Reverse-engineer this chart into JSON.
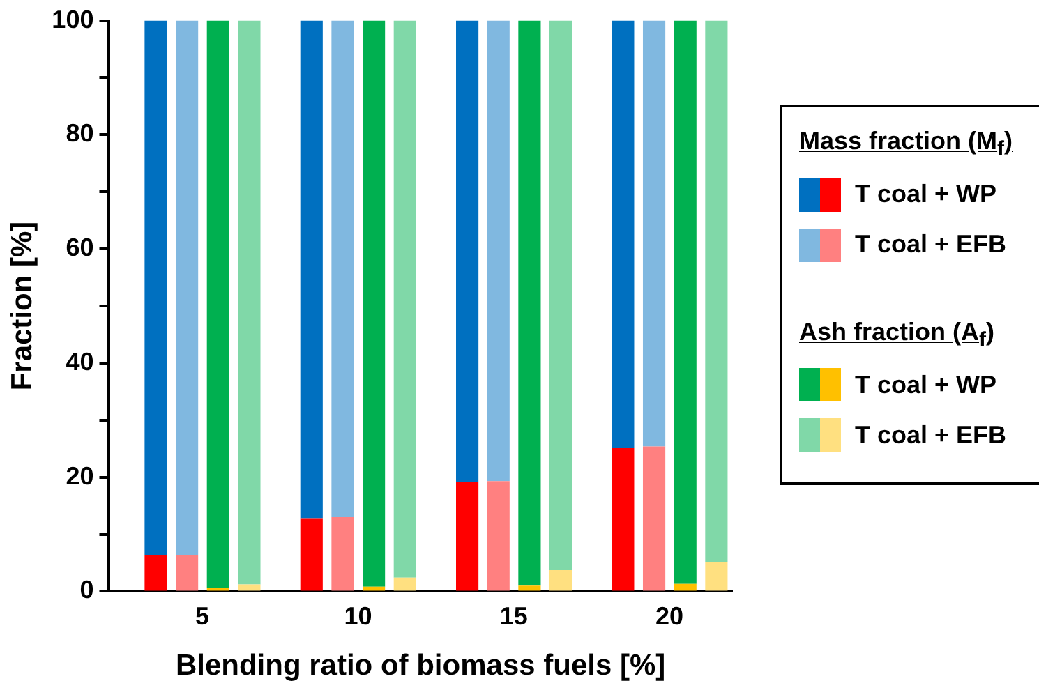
{
  "chart_data": {
    "type": "bar",
    "stacked": true,
    "xlabel": "Blending ratio of biomass fuels [%]",
    "ylabel": "Fraction [%]",
    "categories": [
      null,
      null,
      "5",
      null,
      null,
      null,
      null,
      "10",
      null,
      null,
      null,
      null,
      "15",
      null,
      null,
      null,
      null,
      "20",
      null,
      null
    ],
    "series": [
      {
        "color": "#ff0000",
        "values": [
          null,
          6.3,
          null,
          null,
          null,
          null,
          12.8,
          null,
          null,
          null,
          null,
          19.1,
          null,
          null,
          null,
          null,
          25.1,
          null,
          null,
          null
        ]
      },
      {
        "name": "T coal + WP",
        "color": "#0070c0",
        "values": [
          null,
          93.7,
          null,
          null,
          null,
          null,
          87.2,
          null,
          null,
          null,
          null,
          80.9,
          null,
          null,
          null,
          null,
          74.9,
          null,
          null,
          null
        ]
      },
      {
        "color": "#ff8080",
        "values": [
          null,
          null,
          6.4,
          null,
          null,
          null,
          null,
          13,
          null,
          null,
          null,
          null,
          19.3,
          null,
          null,
          null,
          null,
          25.4,
          null,
          null
        ]
      },
      {
        "name": "T coal + EFB",
        "color": "#80b8e0",
        "values": [
          null,
          null,
          93.6,
          null,
          null,
          null,
          null,
          87,
          null,
          null,
          null,
          null,
          80.7,
          null,
          null,
          null,
          null,
          74.6,
          null,
          null
        ]
      },
      {
        "color": "#ffc000",
        "values": [
          null,
          null,
          null,
          0.6,
          null,
          null,
          null,
          null,
          0.8,
          null,
          null,
          null,
          null,
          1,
          null,
          null,
          null,
          null,
          1.3,
          null
        ]
      },
      {
        "name": "T coal + WP",
        "color": "#00b050",
        "values": [
          null,
          null,
          null,
          99.4,
          null,
          null,
          null,
          null,
          99.2,
          null,
          null,
          null,
          null,
          99,
          null,
          null,
          null,
          null,
          98.7,
          null
        ]
      },
      {
        "color": "#ffe080",
        "values": [
          null,
          null,
          null,
          null,
          1.2,
          null,
          null,
          null,
          null,
          2.4,
          null,
          null,
          null,
          null,
          3.7,
          null,
          null,
          null,
          null,
          5.1
        ]
      },
      {
        "name": "T coal + EFB",
        "color": "#80d8a8",
        "values": [
          null,
          null,
          null,
          null,
          98.8,
          null,
          null,
          null,
          null,
          97.6,
          null,
          null,
          null,
          null,
          96.3,
          null,
          null,
          null,
          null,
          94.9
        ]
      }
    ],
    "ylim": [
      0,
      100
    ],
    "yticks": [
      0,
      {
        "value": 10,
        "label": null
      },
      20,
      {
        "value": 30,
        "label": null
      },
      40,
      {
        "value": 50,
        "label": null
      },
      60,
      {
        "value": 70,
        "label": null
      },
      80,
      {
        "value": 90,
        "label": null
      },
      100
    ],
    "grid": false,
    "legend": "right",
    "annotations": [
      "Mass fraction (M$_{f}$)",
      "Ash fraction (A$_{f}$)"
    ]
  }
}
